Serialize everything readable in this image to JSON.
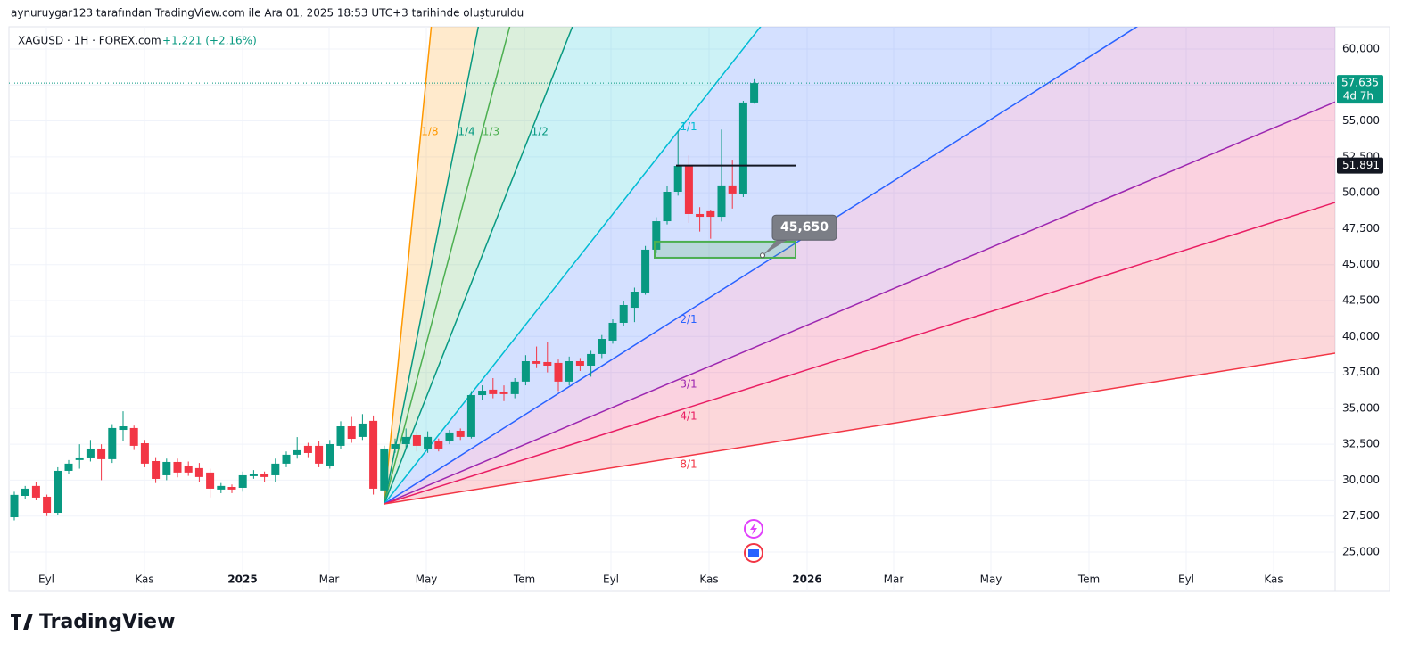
{
  "header": {
    "attribution": "aynuruygar123 tarafından TradingView.com ile Ara 01, 2025 18:53 UTC+3 tarihinde oluşturuldu",
    "symbol": "XAGUSD · 1H · FOREX.com",
    "change": "+1,221 (+2,16%)"
  },
  "footer": {
    "brand": "TradingView"
  },
  "chart_data": {
    "type": "candlestick",
    "ylim": [
      22.27,
      61.55
    ],
    "yticks": [
      {
        "value": 60,
        "label": "60,000"
      },
      {
        "value": 57.5,
        "label": "57,500"
      },
      {
        "value": 55,
        "label": "55,000"
      },
      {
        "value": 52.5,
        "label": "52,500"
      },
      {
        "value": 50,
        "label": "50,000"
      },
      {
        "value": 47.5,
        "label": "47,500"
      },
      {
        "value": 45,
        "label": "45,000"
      },
      {
        "value": 42.5,
        "label": "42,500"
      },
      {
        "value": 40,
        "label": "40,000"
      },
      {
        "value": 37.5,
        "label": "37,500"
      },
      {
        "value": 35,
        "label": "35,000"
      },
      {
        "value": 32.5,
        "label": "32,500"
      },
      {
        "value": 30,
        "label": "30,000"
      },
      {
        "value": 27.5,
        "label": "27,500"
      },
      {
        "value": 25,
        "label": "25,000"
      }
    ],
    "xticks": [
      "Eyl",
      "Kas",
      "2025",
      "Mar",
      "May",
      "Tem",
      "Eyl",
      "Kas",
      "2026",
      "Mar",
      "May",
      "Tem",
      "Eyl",
      "Kas"
    ],
    "up_color": "#089981",
    "down_color": "#f23645",
    "open": [
      27.42,
      28.91,
      29.6,
      28.85,
      27.73,
      30.65,
      31.4,
      31.58,
      32.2,
      31.46,
      33.5,
      33.63,
      32.57,
      31.33,
      30.34,
      31.27,
      31.02,
      30.84,
      30.53,
      29.35,
      29.53,
      29.47,
      30.28,
      30.4,
      30.34,
      31.15,
      31.77,
      32.39,
      32.39,
      31.02,
      32.39,
      33.75,
      33.01,
      34.13,
      29.29,
      32.2,
      32.51,
      33.13,
      32.2,
      32.7,
      32.7,
      33.44,
      33.01,
      35.92,
      36.3,
      36.11,
      35.99,
      36.86,
      38.28,
      38.22,
      38.16,
      36.86,
      38.28,
      37.97,
      38.78,
      39.71,
      40.95,
      42.0,
      43.06,
      46.04,
      48.02,
      50.07,
      51.87,
      48.52,
      48.71,
      48.33,
      50.51,
      49.89,
      56.28
    ],
    "high": [
      29.2,
      29.6,
      29.9,
      29.0,
      30.9,
      31.4,
      32.5,
      32.8,
      32.5,
      33.9,
      34.8,
      33.8,
      32.8,
      31.6,
      31.5,
      31.5,
      31.3,
      31.2,
      30.8,
      29.8,
      29.7,
      30.6,
      30.7,
      30.6,
      31.5,
      32.0,
      33.0,
      32.6,
      32.7,
      32.8,
      34.1,
      34.4,
      34.6,
      34.5,
      32.4,
      32.9,
      33.6,
      33.4,
      33.4,
      32.9,
      33.5,
      33.6,
      36.2,
      36.6,
      37.1,
      36.6,
      37.1,
      38.7,
      39.3,
      39.6,
      38.4,
      38.6,
      38.5,
      39.0,
      40.1,
      41.2,
      42.5,
      43.4,
      46.3,
      48.3,
      50.5,
      54.3,
      52.6,
      49.0,
      48.8,
      54.4,
      52.3,
      56.4,
      57.9
    ],
    "low": [
      27.2,
      28.7,
      28.6,
      27.5,
      27.6,
      30.4,
      30.8,
      31.3,
      30.0,
      31.2,
      32.7,
      32.1,
      30.9,
      29.8,
      30.0,
      30.2,
      30.3,
      29.9,
      28.8,
      29.1,
      29.1,
      29.2,
      30.1,
      29.9,
      29.9,
      30.9,
      31.5,
      31.6,
      30.9,
      30.8,
      32.2,
      32.6,
      32.8,
      29.0,
      28.4,
      31.9,
      32.2,
      32.0,
      31.9,
      32.0,
      32.5,
      32.8,
      32.9,
      35.6,
      35.7,
      35.5,
      35.7,
      36.6,
      37.8,
      37.5,
      36.2,
      36.6,
      37.6,
      37.2,
      38.5,
      39.5,
      40.7,
      41.0,
      42.9,
      45.8,
      47.8,
      49.8,
      47.9,
      47.3,
      46.8,
      48.0,
      48.9,
      49.7,
      56.2
    ],
    "close": [
      28.98,
      29.41,
      28.79,
      27.73,
      30.65,
      31.15,
      31.58,
      32.2,
      31.46,
      33.63,
      33.75,
      32.39,
      31.15,
      30.09,
      31.27,
      30.53,
      30.53,
      30.22,
      29.41,
      29.6,
      29.35,
      30.34,
      30.4,
      30.22,
      31.15,
      31.77,
      32.08,
      31.89,
      31.15,
      32.51,
      33.75,
      32.88,
      33.94,
      29.41,
      32.2,
      32.51,
      33.01,
      32.39,
      33.01,
      32.2,
      33.32,
      33.01,
      35.92,
      36.23,
      35.99,
      35.99,
      36.86,
      38.28,
      38.1,
      37.97,
      36.86,
      38.28,
      37.97,
      38.78,
      39.83,
      40.95,
      42.19,
      43.12,
      46.04,
      48.02,
      50.07,
      51.87,
      48.52,
      48.33,
      48.33,
      50.51,
      49.95,
      56.28,
      57.635
    ],
    "last_price": {
      "value": 57.635,
      "label": "57,635",
      "countdown": "4d 7h"
    },
    "hline": {
      "value": 51.891,
      "label": "51,891",
      "color": "#131722"
    },
    "box": {
      "top": 46.6,
      "bottom": 45.48,
      "color": "#4caf50"
    },
    "callout": {
      "value": 45.65,
      "label": "45,650"
    },
    "gann_fan": {
      "origin_candle": 34,
      "origin_price": 28.35,
      "price_per_bar": 0.96,
      "levels": [
        {
          "label": "1/8",
          "color": "#ff9800"
        },
        {
          "label": "1/4",
          "color": "#089981"
        },
        {
          "label": "1/3",
          "color": "#4caf50"
        },
        {
          "label": "1/2",
          "color": "#089981"
        },
        {
          "label": "1/1",
          "color": "#00bcd4"
        },
        {
          "label": "2/1",
          "color": "#2962ff"
        },
        {
          "label": "3/1",
          "color": "#9c27b0"
        },
        {
          "label": "4/1",
          "color": "#e91e63"
        },
        {
          "label": "8/1",
          "color": "#f23645"
        }
      ],
      "fills": [
        "#ff9800",
        "#4caf50",
        "#4caf50",
        "#00bcd4",
        "#2962ff",
        "#9c27b0",
        "#e91e63",
        "#f23645"
      ]
    }
  }
}
